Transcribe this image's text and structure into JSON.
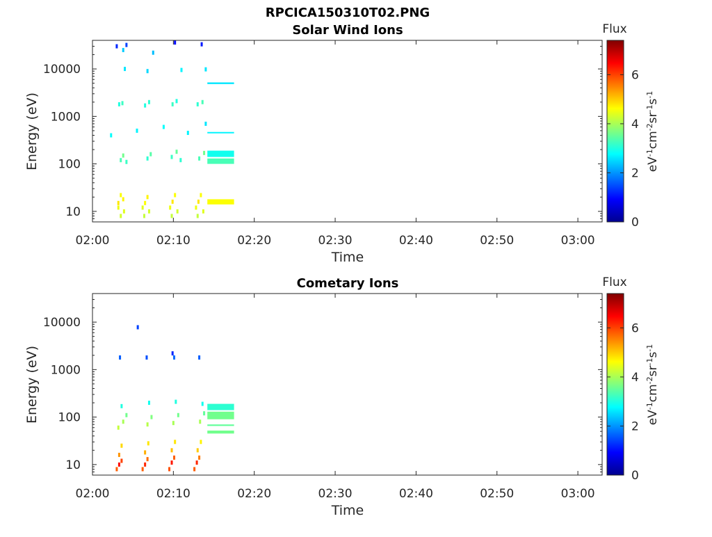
{
  "figure": {
    "title": "RPCICA150310T02.PNG"
  },
  "chart_data": [
    {
      "type": "heatmap",
      "title": "Solar Wind Ions",
      "xlabel": "Time",
      "ylabel": "Energy (eV)",
      "x_ticks": [
        "02:00",
        "02:10",
        "02:20",
        "02:30",
        "02:40",
        "02:50",
        "03:00"
      ],
      "xlim_min": [
        0,
        63
      ],
      "y_ticks": [
        "10",
        "100",
        "1000",
        "10000"
      ],
      "ylim_eV": [
        6,
        40000
      ],
      "y_scale": "log",
      "colorbar": {
        "title": "Flux",
        "label": "eV-1cm-2sr-1s-1",
        "ticks": [
          "0",
          "2",
          "4",
          "6"
        ],
        "range": [
          0,
          7.4
        ]
      },
      "cells": [
        [
          3.2,
          12,
          4.5
        ],
        [
          3.2,
          15,
          4.8
        ],
        [
          3.5,
          22,
          4.6
        ],
        [
          3.8,
          18,
          4.7
        ],
        [
          3.5,
          8,
          4.3
        ],
        [
          3.9,
          10,
          4.4
        ],
        [
          6.2,
          12,
          4.4
        ],
        [
          6.5,
          15,
          4.6
        ],
        [
          6.8,
          20,
          4.7
        ],
        [
          7.0,
          10,
          4.3
        ],
        [
          6.4,
          8,
          4.2
        ],
        [
          9.6,
          12,
          4.5
        ],
        [
          9.9,
          16,
          4.8
        ],
        [
          10.2,
          22,
          4.6
        ],
        [
          10.5,
          10,
          4.3
        ],
        [
          9.8,
          8,
          4.2
        ],
        [
          12.8,
          12,
          4.5
        ],
        [
          13.1,
          16,
          4.8
        ],
        [
          13.4,
          22,
          4.6
        ],
        [
          13.7,
          10,
          4.4
        ],
        [
          13.0,
          8,
          4.2
        ],
        [
          3.5,
          120,
          3.3
        ],
        [
          3.8,
          150,
          3.6
        ],
        [
          4.2,
          110,
          3.2
        ],
        [
          6.8,
          130,
          3.1
        ],
        [
          7.2,
          160,
          3.4
        ],
        [
          9.8,
          140,
          3.2
        ],
        [
          10.4,
          180,
          3.5
        ],
        [
          10.9,
          120,
          3.1
        ],
        [
          13.2,
          130,
          3.3
        ],
        [
          13.8,
          170,
          3.6
        ],
        [
          3.3,
          1800,
          3.0
        ],
        [
          3.7,
          1900,
          3.2
        ],
        [
          6.5,
          1700,
          3.0
        ],
        [
          7.0,
          2000,
          3.1
        ],
        [
          9.9,
          1800,
          3.2
        ],
        [
          10.4,
          2100,
          3.0
        ],
        [
          13.0,
          1800,
          3.1
        ],
        [
          13.6,
          2000,
          3.3
        ],
        [
          2.3,
          400,
          2.8
        ],
        [
          5.5,
          500,
          2.7
        ],
        [
          8.8,
          600,
          2.8
        ],
        [
          11.8,
          450,
          2.7
        ],
        [
          14.0,
          700,
          2.6
        ],
        [
          3.0,
          30000,
          1.2
        ],
        [
          4.2,
          32000,
          1.4
        ],
        [
          10.2,
          36000,
          1.0
        ],
        [
          13.5,
          33000,
          1.1
        ],
        [
          4.0,
          10000,
          2.6
        ],
        [
          6.8,
          9000,
          2.5
        ],
        [
          11.0,
          9500,
          2.7
        ],
        [
          14.0,
          9800,
          2.6
        ],
        [
          3.8,
          25000,
          2.4
        ],
        [
          7.5,
          22000,
          2.3
        ]
      ],
      "bands": [
        [
          14.2,
          17.5,
          14,
          18,
          4.6
        ],
        [
          14.2,
          17.5,
          100,
          130,
          3.3
        ],
        [
          14.2,
          17.5,
          140,
          190,
          2.9
        ],
        [
          14.2,
          17.5,
          440,
          470,
          2.7
        ],
        [
          14.2,
          17.5,
          4800,
          5200,
          2.6
        ]
      ]
    },
    {
      "type": "heatmap",
      "title": "Cometary Ions",
      "xlabel": "Time",
      "ylabel": "Energy (eV)",
      "x_ticks": [
        "02:00",
        "02:10",
        "02:20",
        "02:30",
        "02:40",
        "02:50",
        "03:00"
      ],
      "xlim_min": [
        0,
        63
      ],
      "y_ticks": [
        "10",
        "100",
        "1000",
        "10000"
      ],
      "ylim_eV": [
        6,
        40000
      ],
      "y_scale": "log",
      "colorbar": {
        "title": "Flux",
        "label": "eV-1cm-2sr-1s-1",
        "ticks": [
          "0",
          "2",
          "4",
          "6"
        ],
        "range": [
          0,
          7.4
        ]
      },
      "cells": [
        [
          3.0,
          8,
          5.8
        ],
        [
          3.3,
          10,
          6.4
        ],
        [
          3.6,
          12,
          6.0
        ],
        [
          3.3,
          16,
          5.4
        ],
        [
          3.6,
          25,
          4.9
        ],
        [
          6.2,
          8,
          5.8
        ],
        [
          6.5,
          10,
          6.2
        ],
        [
          6.8,
          13,
          5.7
        ],
        [
          6.5,
          18,
          5.2
        ],
        [
          6.9,
          28,
          4.8
        ],
        [
          9.5,
          8,
          5.9
        ],
        [
          9.8,
          11,
          6.3
        ],
        [
          10.1,
          14,
          5.8
        ],
        [
          9.8,
          20,
          5.1
        ],
        [
          10.2,
          30,
          4.8
        ],
        [
          12.6,
          8,
          5.8
        ],
        [
          12.9,
          11,
          6.2
        ],
        [
          13.2,
          14,
          5.6
        ],
        [
          13.0,
          20,
          5.0
        ],
        [
          13.4,
          30,
          4.7
        ],
        [
          3.2,
          60,
          4.2
        ],
        [
          3.8,
          80,
          4.0
        ],
        [
          4.2,
          110,
          3.6
        ],
        [
          6.8,
          70,
          4.1
        ],
        [
          7.3,
          100,
          3.7
        ],
        [
          10.0,
          75,
          4.0
        ],
        [
          10.6,
          110,
          3.6
        ],
        [
          13.3,
          80,
          4.0
        ],
        [
          13.8,
          120,
          3.5
        ],
        [
          3.6,
          170,
          3.0
        ],
        [
          7.0,
          200,
          2.9
        ],
        [
          10.3,
          210,
          3.0
        ],
        [
          13.6,
          190,
          2.9
        ],
        [
          3.4,
          1800,
          1.6
        ],
        [
          6.7,
          1800,
          1.5
        ],
        [
          10.1,
          1800,
          1.7
        ],
        [
          13.2,
          1800,
          1.6
        ],
        [
          5.6,
          7800,
          1.4
        ],
        [
          9.9,
          2200,
          1.2
        ]
      ],
      "bands": [
        [
          14.2,
          17.5,
          45,
          52,
          3.6
        ],
        [
          14.2,
          17.5,
          65,
          70,
          3.5
        ],
        [
          14.2,
          17.5,
          90,
          130,
          3.6
        ],
        [
          14.2,
          17.5,
          140,
          190,
          3.1
        ]
      ]
    }
  ]
}
